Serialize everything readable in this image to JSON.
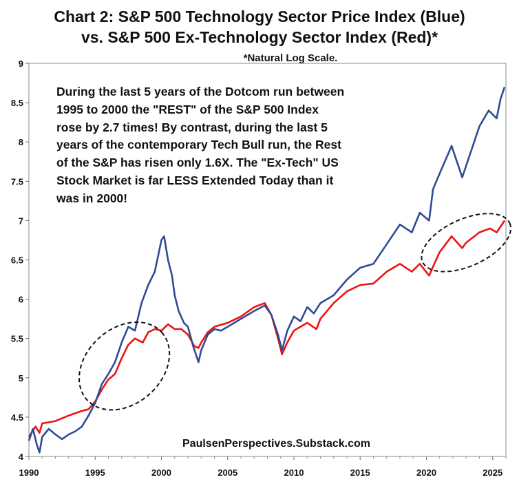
{
  "chart_data": {
    "type": "line",
    "title_line1": "Chart 2: S&P 500 Technology Sector Price Index (Blue)",
    "title_line2": "vs. S&P 500 Ex-Technology Sector Index (Red)*",
    "subtitle": "*Natural Log Scale.",
    "annotation": "During the last 5 years of the Dotcom run between 1995 to 2000 the \"REST\" of the S&P 500 Index rose by 2.7 times!  By contrast, during the last 5 years of the contemporary Tech Bull run, the Rest of the S&P has risen only 1.6X.    The \"Ex-Tech\" US Stock Market is far LESS Extended Today than it was in 2000!",
    "source": "PaulsenPerspectives.Substack.com",
    "xlim": [
      1990,
      2026
    ],
    "ylim": [
      4,
      9
    ],
    "x_ticks": [
      "1990",
      "1995",
      "2000",
      "2005",
      "2010",
      "2015",
      "2020",
      "2025"
    ],
    "y_ticks": [
      "4",
      "4.5",
      "5",
      "5.5",
      "6",
      "6.5",
      "7",
      "7.5",
      "8",
      "8.5",
      "9"
    ],
    "series": [
      {
        "name": "S&P 500 Technology Sector Price Index",
        "color": "#2e4b95",
        "points": [
          [
            1990.0,
            4.2
          ],
          [
            1990.3,
            4.35
          ],
          [
            1990.6,
            4.15
          ],
          [
            1990.8,
            4.05
          ],
          [
            1991.0,
            4.25
          ],
          [
            1991.5,
            4.35
          ],
          [
            1992.0,
            4.28
          ],
          [
            1992.5,
            4.22
          ],
          [
            1993.0,
            4.28
          ],
          [
            1993.5,
            4.32
          ],
          [
            1994.0,
            4.38
          ],
          [
            1994.5,
            4.52
          ],
          [
            1995.0,
            4.68
          ],
          [
            1995.5,
            4.92
          ],
          [
            1996.0,
            5.05
          ],
          [
            1996.5,
            5.2
          ],
          [
            1997.0,
            5.45
          ],
          [
            1997.5,
            5.65
          ],
          [
            1998.0,
            5.6
          ],
          [
            1998.5,
            5.95
          ],
          [
            1999.0,
            6.18
          ],
          [
            1999.5,
            6.35
          ],
          [
            2000.0,
            6.75
          ],
          [
            2000.2,
            6.8
          ],
          [
            2000.5,
            6.5
          ],
          [
            2000.8,
            6.3
          ],
          [
            2001.0,
            6.05
          ],
          [
            2001.3,
            5.85
          ],
          [
            2001.7,
            5.7
          ],
          [
            2002.0,
            5.65
          ],
          [
            2002.4,
            5.4
          ],
          [
            2002.8,
            5.2
          ],
          [
            2003.0,
            5.35
          ],
          [
            2003.5,
            5.55
          ],
          [
            2004.0,
            5.62
          ],
          [
            2004.5,
            5.6
          ],
          [
            2005.0,
            5.65
          ],
          [
            2006.0,
            5.75
          ],
          [
            2007.0,
            5.85
          ],
          [
            2007.8,
            5.92
          ],
          [
            2008.3,
            5.8
          ],
          [
            2008.8,
            5.55
          ],
          [
            2009.1,
            5.35
          ],
          [
            2009.5,
            5.6
          ],
          [
            2010.0,
            5.78
          ],
          [
            2010.5,
            5.72
          ],
          [
            2011.0,
            5.9
          ],
          [
            2011.5,
            5.82
          ],
          [
            2012.0,
            5.95
          ],
          [
            2013.0,
            6.05
          ],
          [
            2014.0,
            6.25
          ],
          [
            2015.0,
            6.4
          ],
          [
            2016.0,
            6.45
          ],
          [
            2017.0,
            6.7
          ],
          [
            2018.0,
            6.95
          ],
          [
            2018.9,
            6.85
          ],
          [
            2019.5,
            7.1
          ],
          [
            2020.2,
            7.0
          ],
          [
            2020.5,
            7.4
          ],
          [
            2021.0,
            7.6
          ],
          [
            2021.9,
            7.95
          ],
          [
            2022.7,
            7.55
          ],
          [
            2023.0,
            7.7
          ],
          [
            2024.0,
            8.2
          ],
          [
            2024.7,
            8.4
          ],
          [
            2025.3,
            8.3
          ],
          [
            2025.6,
            8.55
          ],
          [
            2025.9,
            8.7
          ]
        ]
      },
      {
        "name": "S&P 500 Ex-Technology Sector Index",
        "color": "#ee1111",
        "points": [
          [
            1990.0,
            4.25
          ],
          [
            1990.5,
            4.38
          ],
          [
            1990.8,
            4.3
          ],
          [
            1991.0,
            4.42
          ],
          [
            1992.0,
            4.45
          ],
          [
            1993.0,
            4.52
          ],
          [
            1994.0,
            4.58
          ],
          [
            1994.5,
            4.6
          ],
          [
            1995.0,
            4.7
          ],
          [
            1995.5,
            4.85
          ],
          [
            1996.0,
            4.98
          ],
          [
            1996.5,
            5.05
          ],
          [
            1997.0,
            5.25
          ],
          [
            1997.5,
            5.42
          ],
          [
            1998.0,
            5.5
          ],
          [
            1998.6,
            5.45
          ],
          [
            1999.0,
            5.58
          ],
          [
            1999.5,
            5.62
          ],
          [
            2000.0,
            5.6
          ],
          [
            2000.5,
            5.68
          ],
          [
            2001.0,
            5.62
          ],
          [
            2001.5,
            5.62
          ],
          [
            2002.0,
            5.55
          ],
          [
            2002.5,
            5.4
          ],
          [
            2002.8,
            5.38
          ],
          [
            2003.0,
            5.45
          ],
          [
            2003.5,
            5.58
          ],
          [
            2004.0,
            5.65
          ],
          [
            2005.0,
            5.7
          ],
          [
            2006.0,
            5.78
          ],
          [
            2007.0,
            5.9
          ],
          [
            2007.8,
            5.95
          ],
          [
            2008.3,
            5.8
          ],
          [
            2008.8,
            5.5
          ],
          [
            2009.1,
            5.3
          ],
          [
            2009.5,
            5.45
          ],
          [
            2010.0,
            5.6
          ],
          [
            2011.0,
            5.7
          ],
          [
            2011.7,
            5.62
          ],
          [
            2012.0,
            5.75
          ],
          [
            2013.0,
            5.95
          ],
          [
            2014.0,
            6.1
          ],
          [
            2015.0,
            6.18
          ],
          [
            2016.0,
            6.2
          ],
          [
            2017.0,
            6.35
          ],
          [
            2018.0,
            6.45
          ],
          [
            2018.9,
            6.35
          ],
          [
            2019.5,
            6.45
          ],
          [
            2020.2,
            6.3
          ],
          [
            2020.6,
            6.45
          ],
          [
            2021.0,
            6.6
          ],
          [
            2021.9,
            6.8
          ],
          [
            2022.7,
            6.65
          ],
          [
            2023.0,
            6.72
          ],
          [
            2024.0,
            6.85
          ],
          [
            2024.8,
            6.9
          ],
          [
            2025.3,
            6.85
          ],
          [
            2025.9,
            7.0
          ]
        ]
      }
    ],
    "highlights": [
      {
        "label": "1995-2000 ex-tech run",
        "cx": 1997.2,
        "cy": 5.15,
        "rx_years": 3.8,
        "ry_index": 0.48,
        "angle": -42
      },
      {
        "label": "2020-2025 ex-tech run",
        "cx": 2023.0,
        "cy": 6.72,
        "rx_years": 3.6,
        "ry_index": 0.3,
        "angle": -24
      }
    ]
  }
}
